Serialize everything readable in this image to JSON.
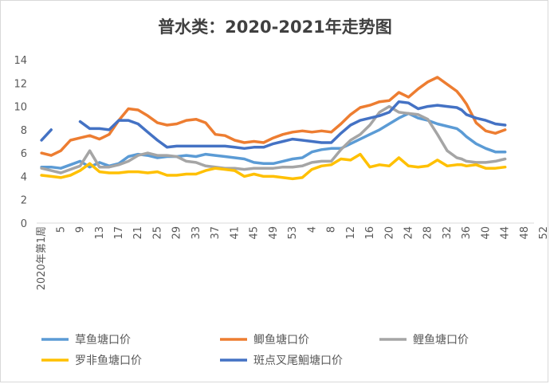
{
  "chart_data": {
    "type": "line",
    "title": "普水类：2020-2021年走势图",
    "xlabel": "",
    "ylabel": "",
    "ylim": [
      0,
      14
    ],
    "yticks": [
      0,
      2,
      4,
      6,
      8,
      10,
      12,
      14
    ],
    "grid": false,
    "legend_position": "bottom",
    "xtick_labels": [
      "2020年第1周",
      "5",
      "9",
      "13",
      "17",
      "21",
      "25",
      "29",
      "33",
      "37",
      "41",
      "45",
      "49",
      "53",
      "4",
      "8",
      "12",
      "16",
      "20",
      "24",
      "28",
      "32",
      "36",
      "40",
      "44",
      "48",
      "52"
    ],
    "x": [
      1,
      3,
      5,
      7,
      9,
      11,
      13,
      15,
      17,
      19,
      21,
      23,
      25,
      27,
      29,
      31,
      33,
      35,
      37,
      39,
      41,
      43,
      45,
      47,
      49,
      51,
      53,
      55,
      57,
      59,
      61,
      63,
      65,
      67,
      69,
      71,
      73,
      75,
      77,
      79,
      81,
      83,
      85,
      87,
      88,
      89,
      91,
      93,
      95,
      97
    ],
    "series": [
      {
        "name": "草鱼塘口价",
        "color": "#5b9bd5",
        "values": [
          4.8,
          4.8,
          4.7,
          5.0,
          5.3,
          4.8,
          5.2,
          4.9,
          5.1,
          5.7,
          5.9,
          5.8,
          5.6,
          5.7,
          5.7,
          5.8,
          5.7,
          5.9,
          5.8,
          5.7,
          5.6,
          5.5,
          5.2,
          5.1,
          5.1,
          5.3,
          5.5,
          5.6,
          6.1,
          6.3,
          6.4,
          6.4,
          6.8,
          7.2,
          7.6,
          8.0,
          8.5,
          9.0,
          9.4,
          9.0,
          8.8,
          8.5,
          8.3,
          8.1,
          7.8,
          7.4,
          6.8,
          6.4,
          6.1,
          6.1
        ]
      },
      {
        "name": "鲫鱼塘口价",
        "color": "#ed7d31",
        "values": [
          6.0,
          5.8,
          6.2,
          7.1,
          7.3,
          7.5,
          7.2,
          7.6,
          8.8,
          9.8,
          9.7,
          9.2,
          8.6,
          8.4,
          8.5,
          8.8,
          8.9,
          8.6,
          7.6,
          7.5,
          7.1,
          6.9,
          7.0,
          6.9,
          7.3,
          7.6,
          7.8,
          7.9,
          7.8,
          7.9,
          7.8,
          8.5,
          9.3,
          9.9,
          10.1,
          10.4,
          10.5,
          11.2,
          10.8,
          11.5,
          12.1,
          12.5,
          11.9,
          11.3,
          10.8,
          10.2,
          8.6,
          7.9,
          7.7,
          8.0
        ]
      },
      {
        "name": "鲤鱼塘口价",
        "color": "#a5a5a5",
        "values": [
          4.7,
          4.5,
          4.3,
          4.6,
          4.9,
          6.2,
          4.8,
          4.8,
          5.0,
          5.3,
          5.8,
          6.0,
          5.8,
          5.8,
          5.7,
          5.3,
          5.2,
          4.9,
          4.8,
          4.7,
          4.7,
          4.6,
          4.7,
          4.7,
          4.7,
          4.8,
          4.8,
          4.9,
          5.2,
          5.3,
          5.3,
          6.3,
          7.1,
          7.6,
          8.4,
          9.5,
          10.0,
          9.5,
          9.4,
          9.3,
          8.9,
          7.6,
          6.2,
          5.6,
          5.5,
          5.3,
          5.2,
          5.2,
          5.3,
          5.5
        ]
      },
      {
        "name": "罗非鱼塘口价",
        "color": "#ffc000",
        "values": [
          4.1,
          4.0,
          3.9,
          4.1,
          4.5,
          5.1,
          4.4,
          4.3,
          4.3,
          4.4,
          4.4,
          4.3,
          4.4,
          4.1,
          4.1,
          4.2,
          4.2,
          4.5,
          4.7,
          4.6,
          4.5,
          4.0,
          4.2,
          4.0,
          4.0,
          3.9,
          3.8,
          3.9,
          4.6,
          4.9,
          5.0,
          5.5,
          5.4,
          5.9,
          4.8,
          5.0,
          4.9,
          5.6,
          4.9,
          4.8,
          4.9,
          5.4,
          4.9,
          5.0,
          5.0,
          4.9,
          5.0,
          4.7,
          4.7,
          4.8
        ]
      },
      {
        "name": "斑点叉尾鮰塘口价",
        "color": "#4472c4",
        "values": [
          7.1,
          8.0,
          null,
          null,
          8.7,
          8.1,
          8.1,
          8.0,
          8.8,
          8.8,
          8.5,
          7.8,
          7.1,
          6.5,
          6.6,
          6.6,
          6.6,
          6.6,
          6.6,
          6.6,
          6.5,
          6.4,
          6.5,
          6.5,
          6.8,
          7.0,
          7.2,
          7.1,
          7.0,
          6.9,
          6.9,
          7.7,
          8.4,
          8.8,
          9.0,
          9.2,
          9.5,
          10.4,
          10.3,
          9.8,
          10.0,
          10.1,
          10.0,
          9.9,
          9.7,
          9.3,
          9.0,
          8.8,
          8.5,
          8.4
        ]
      }
    ]
  }
}
